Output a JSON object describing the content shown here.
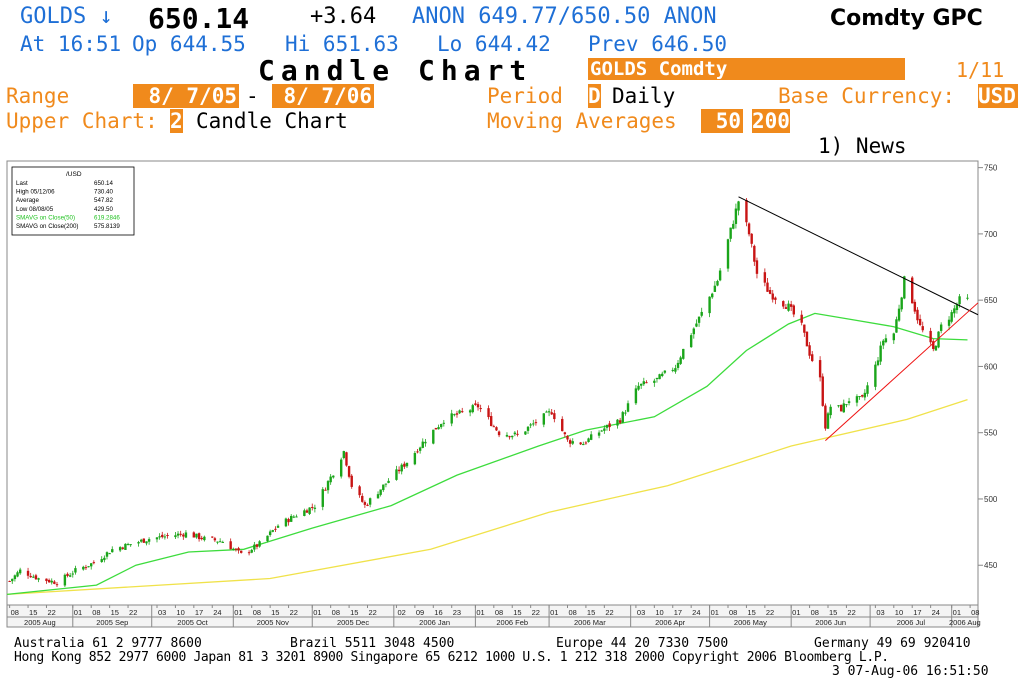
{
  "header": {
    "ticker": "GOLDS ↓",
    "price": "650.14",
    "change": "+3.64",
    "quote": "ANON 649.77/650.50 ANON",
    "function_code": "Comdty GPC",
    "time_label": "At 16:51",
    "open": "Op 644.55",
    "high": "Hi 651.63",
    "low": "Lo 644.42",
    "prev": "Prev 646.50",
    "title": "Candle Chart",
    "security": "GOLDS Comdty",
    "page": "1/11"
  },
  "controls": {
    "range_label": "Range",
    "range_start": "8/ 7/05",
    "range_dash": "-",
    "range_end": "8/ 7/06",
    "period_label": "Period",
    "period_code": "D",
    "period_value": "Daily",
    "base_currency_label": "Base Currency:",
    "base_currency": "USD",
    "upper_chart_label": "Upper Chart:",
    "upper_chart_code": "2",
    "upper_chart_value": "Candle Chart",
    "ma_label": "Moving Averages",
    "ma1": "50",
    "ma2": "200",
    "news": "1) News"
  },
  "legend": {
    "title": "/USD",
    "rows": [
      {
        "label": "Last",
        "value": "650.14",
        "color": "#000000"
      },
      {
        "label": "High  05/12/06",
        "value": "730.40",
        "color": "#000000"
      },
      {
        "label": "Average",
        "value": "547.82",
        "color": "#000000"
      },
      {
        "label": "Low  08/08/05",
        "value": "429.50",
        "color": "#000000"
      },
      {
        "label": "SMAVG on Close(50)",
        "value": "619.2846",
        "color": "#22c222"
      },
      {
        "label": "SMAVG on Close(200)",
        "value": "575.8139",
        "color": "#000000"
      }
    ]
  },
  "chart_data": {
    "type": "candlestick",
    "ylim": [
      420,
      755
    ],
    "yticks": [
      450,
      500,
      550,
      600,
      650,
      700,
      750
    ],
    "x_range": [
      "2005-08-07",
      "2006-08-11"
    ],
    "day_ticks": [
      {
        "date": "2005-08-08",
        "label": "08"
      },
      {
        "date": "2005-08-15",
        "label": "15"
      },
      {
        "date": "2005-08-22",
        "label": "22"
      },
      {
        "date": "2005-09-01",
        "label": "01"
      },
      {
        "date": "2005-09-08",
        "label": "08"
      },
      {
        "date": "2005-09-15",
        "label": "15"
      },
      {
        "date": "2005-09-22",
        "label": "22"
      },
      {
        "date": "2005-10-03",
        "label": "03"
      },
      {
        "date": "2005-10-10",
        "label": "10"
      },
      {
        "date": "2005-10-17",
        "label": "17"
      },
      {
        "date": "2005-10-24",
        "label": "24"
      },
      {
        "date": "2005-11-01",
        "label": "01"
      },
      {
        "date": "2005-11-08",
        "label": "08"
      },
      {
        "date": "2005-11-15",
        "label": "15"
      },
      {
        "date": "2005-11-22",
        "label": "22"
      },
      {
        "date": "2005-12-01",
        "label": "01"
      },
      {
        "date": "2005-12-08",
        "label": "08"
      },
      {
        "date": "2005-12-15",
        "label": "15"
      },
      {
        "date": "2005-12-22",
        "label": "22"
      },
      {
        "date": "2006-01-02",
        "label": "02"
      },
      {
        "date": "2006-01-09",
        "label": "09"
      },
      {
        "date": "2006-01-16",
        "label": "16"
      },
      {
        "date": "2006-01-23",
        "label": "23"
      },
      {
        "date": "2006-02-01",
        "label": "01"
      },
      {
        "date": "2006-02-08",
        "label": "08"
      },
      {
        "date": "2006-02-15",
        "label": "15"
      },
      {
        "date": "2006-02-22",
        "label": "22"
      },
      {
        "date": "2006-03-01",
        "label": "01"
      },
      {
        "date": "2006-03-08",
        "label": "08"
      },
      {
        "date": "2006-03-15",
        "label": "15"
      },
      {
        "date": "2006-03-22",
        "label": "22"
      },
      {
        "date": "2006-04-03",
        "label": "03"
      },
      {
        "date": "2006-04-10",
        "label": "10"
      },
      {
        "date": "2006-04-17",
        "label": "17"
      },
      {
        "date": "2006-04-24",
        "label": "24"
      },
      {
        "date": "2006-05-01",
        "label": "01"
      },
      {
        "date": "2006-05-08",
        "label": "08"
      },
      {
        "date": "2006-05-15",
        "label": "15"
      },
      {
        "date": "2006-05-22",
        "label": "22"
      },
      {
        "date": "2006-06-01",
        "label": "01"
      },
      {
        "date": "2006-06-08",
        "label": "08"
      },
      {
        "date": "2006-06-15",
        "label": "15"
      },
      {
        "date": "2006-06-22",
        "label": "22"
      },
      {
        "date": "2006-07-03",
        "label": "03"
      },
      {
        "date": "2006-07-10",
        "label": "10"
      },
      {
        "date": "2006-07-17",
        "label": "17"
      },
      {
        "date": "2006-07-24",
        "label": "24"
      },
      {
        "date": "2006-08-01",
        "label": "01"
      },
      {
        "date": "2006-08-08",
        "label": "08"
      }
    ],
    "months": [
      {
        "label": "2005 Aug",
        "start": "2005-08-07",
        "end": "2005-09-01"
      },
      {
        "label": "2005 Sep",
        "start": "2005-09-01",
        "end": "2005-10-01"
      },
      {
        "label": "2005 Oct",
        "start": "2005-10-01",
        "end": "2005-11-01"
      },
      {
        "label": "2005 Nov",
        "start": "2005-11-01",
        "end": "2005-12-01"
      },
      {
        "label": "2005 Dec",
        "start": "2005-12-01",
        "end": "2006-01-01"
      },
      {
        "label": "2006 Jan",
        "start": "2006-01-01",
        "end": "2006-02-01"
      },
      {
        "label": "2006 Feb",
        "start": "2006-02-01",
        "end": "2006-03-01"
      },
      {
        "label": "2006 Mar",
        "start": "2006-03-01",
        "end": "2006-04-01"
      },
      {
        "label": "2006 Apr",
        "start": "2006-04-01",
        "end": "2006-05-01"
      },
      {
        "label": "2006 May",
        "start": "2006-05-01",
        "end": "2006-06-01"
      },
      {
        "label": "2006 Jun",
        "start": "2006-06-01",
        "end": "2006-07-01"
      },
      {
        "label": "2006 Jul",
        "start": "2006-07-01",
        "end": "2006-08-01"
      },
      {
        "label": "2006 Aug",
        "start": "2006-08-01",
        "end": "2006-08-11"
      }
    ],
    "close_path": [
      [
        "2005-08-08",
        438
      ],
      [
        "2005-08-12",
        446
      ],
      [
        "2005-08-19",
        440
      ],
      [
        "2005-08-26",
        437
      ],
      [
        "2005-09-02",
        446
      ],
      [
        "2005-09-09",
        452
      ],
      [
        "2005-09-16",
        462
      ],
      [
        "2005-09-23",
        466
      ],
      [
        "2005-09-30",
        470
      ],
      [
        "2005-10-07",
        472
      ],
      [
        "2005-10-14",
        474
      ],
      [
        "2005-10-21",
        470
      ],
      [
        "2005-10-28",
        468
      ],
      [
        "2005-11-04",
        458
      ],
      [
        "2005-11-11",
        466
      ],
      [
        "2005-11-18",
        480
      ],
      [
        "2005-11-25",
        488
      ],
      [
        "2005-12-02",
        495
      ],
      [
        "2005-12-09",
        520
      ],
      [
        "2005-12-13",
        536
      ],
      [
        "2005-12-16",
        510
      ],
      [
        "2005-12-21",
        495
      ],
      [
        "2005-12-30",
        514
      ],
      [
        "2006-01-06",
        528
      ],
      [
        "2006-01-13",
        545
      ],
      [
        "2006-01-20",
        560
      ],
      [
        "2006-01-27",
        565
      ],
      [
        "2006-02-02",
        570
      ],
      [
        "2006-02-06",
        560
      ],
      [
        "2006-02-10",
        550
      ],
      [
        "2006-02-17",
        548
      ],
      [
        "2006-02-24",
        558
      ],
      [
        "2006-03-02",
        566
      ],
      [
        "2006-03-08",
        544
      ],
      [
        "2006-03-14",
        542
      ],
      [
        "2006-03-21",
        552
      ],
      [
        "2006-03-28",
        560
      ],
      [
        "2006-04-04",
        585
      ],
      [
        "2006-04-11",
        590
      ],
      [
        "2006-04-18",
        600
      ],
      [
        "2006-04-24",
        625
      ],
      [
        "2006-04-28",
        640
      ],
      [
        "2006-05-04",
        665
      ],
      [
        "2006-05-08",
        695
      ],
      [
        "2006-05-12",
        725
      ],
      [
        "2006-05-16",
        700
      ],
      [
        "2006-05-19",
        670
      ],
      [
        "2006-05-24",
        655
      ],
      [
        "2006-05-31",
        645
      ],
      [
        "2006-06-05",
        630
      ],
      [
        "2006-06-08",
        610
      ],
      [
        "2006-06-12",
        590
      ],
      [
        "2006-06-14",
        555
      ],
      [
        "2006-06-16",
        570
      ],
      [
        "2006-06-20",
        568
      ],
      [
        "2006-06-23",
        575
      ],
      [
        "2006-06-28",
        575
      ],
      [
        "2006-07-03",
        600
      ],
      [
        "2006-07-06",
        620
      ],
      [
        "2006-07-10",
        625
      ],
      [
        "2006-07-14",
        665
      ],
      [
        "2006-07-17",
        650
      ],
      [
        "2006-07-20",
        630
      ],
      [
        "2006-07-25",
        612
      ],
      [
        "2006-07-28",
        630
      ],
      [
        "2006-08-01",
        640
      ],
      [
        "2006-08-04",
        650
      ],
      [
        "2006-08-07",
        650
      ]
    ],
    "sma50": [
      [
        "2005-08-07",
        428
      ],
      [
        "2005-09-10",
        435
      ],
      [
        "2005-09-25",
        450
      ],
      [
        "2005-10-15",
        460
      ],
      [
        "2005-11-05",
        462
      ],
      [
        "2005-12-01",
        478
      ],
      [
        "2005-12-31",
        495
      ],
      [
        "2006-01-25",
        518
      ],
      [
        "2006-02-25",
        540
      ],
      [
        "2006-03-15",
        552
      ],
      [
        "2006-04-10",
        562
      ],
      [
        "2006-04-30",
        585
      ],
      [
        "2006-05-15",
        612
      ],
      [
        "2006-05-31",
        632
      ],
      [
        "2006-06-10",
        640
      ],
      [
        "2006-06-25",
        635
      ],
      [
        "2006-07-10",
        630
      ],
      [
        "2006-07-25",
        621
      ],
      [
        "2006-08-07",
        620
      ]
    ],
    "sma200": [
      [
        "2005-08-07",
        428
      ],
      [
        "2005-11-15",
        440
      ],
      [
        "2006-01-15",
        462
      ],
      [
        "2006-03-01",
        490
      ],
      [
        "2006-04-15",
        510
      ],
      [
        "2006-06-01",
        540
      ],
      [
        "2006-07-15",
        560
      ],
      [
        "2006-08-07",
        575
      ]
    ],
    "trendlines": [
      {
        "color": "#000000",
        "from": [
          "2006-05-12",
          728
        ],
        "to": [
          "2006-08-11",
          639
        ]
      },
      {
        "color": "#ee1111",
        "from": [
          "2006-06-14",
          544
        ],
        "to": [
          "2006-08-11",
          648
        ]
      }
    ]
  },
  "footer": {
    "line1": [
      "Australia 61 2 9777 8600",
      "Brazil 5511 3048 4500",
      "Europe 44 20 7330 7500",
      "Germany 49 69 920410"
    ],
    "line2": "Hong Kong 852 2977 6000 Japan 81 3 3201 8900 Singapore 65 6212 1000 U.S. 1 212 318 2000 Copyright 2006 Bloomberg L.P.",
    "line3": "3 07-Aug-06 16:51:50"
  }
}
